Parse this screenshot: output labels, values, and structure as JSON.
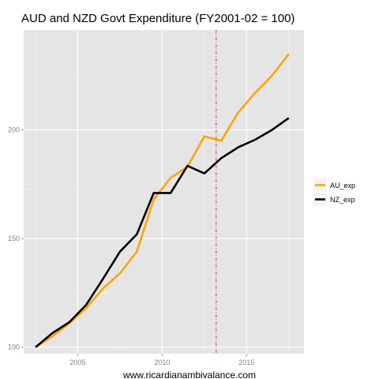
{
  "chart_data": {
    "type": "line",
    "title": "AUD and NZD Govt Expenditure (FY2001-02 = 100)",
    "xlabel": "",
    "ylabel": "",
    "caption": "www.ricardianambivalance.com",
    "xlim": [
      2001.8,
      2018.4
    ],
    "ylim": [
      97,
      246
    ],
    "x_ticks": [
      2005,
      2010,
      2015
    ],
    "y_ticks": [
      100,
      150,
      200
    ],
    "grid": true,
    "legend_position": "right",
    "vline": {
      "x": 2013.2,
      "style": "dashed",
      "color": "#e8282b"
    },
    "x": [
      2002.5,
      2003.5,
      2004.5,
      2005.5,
      2006.5,
      2007.5,
      2008.5,
      2009.5,
      2010.5,
      2011.5,
      2012.5,
      2013.5,
      2014.5,
      2015.5,
      2016.5,
      2017.5
    ],
    "series": [
      {
        "name": "AU_exp",
        "color": "#ffa500",
        "values": [
          100,
          105,
          111,
          118,
          127,
          134,
          144,
          168,
          178,
          183,
          197,
          195,
          208,
          217,
          225,
          235
        ]
      },
      {
        "name": "NZ_exp",
        "color": "#000000",
        "values": [
          100,
          106.5,
          111.5,
          119.5,
          131.5,
          144,
          152,
          171,
          171,
          183.5,
          180,
          187,
          192,
          195.5,
          200,
          205.5
        ]
      }
    ]
  }
}
